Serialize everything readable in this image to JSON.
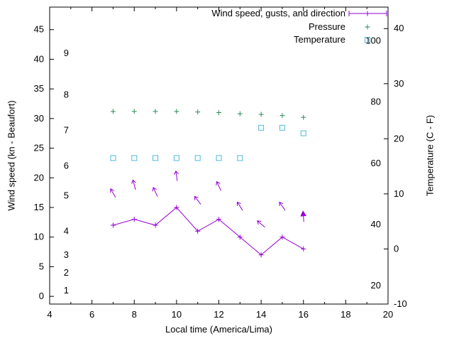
{
  "chart": {
    "background": "#ffffff",
    "text_color": "#000000",
    "axis_color": "#000000",
    "xlabel": "Local time (America/Lima)",
    "ylabel_left": "Wind speed (kn - Beaufort)",
    "ylabel_right": "Temperature (C - F)"
  },
  "legend": [
    {
      "label": "Wind speed, gusts, and direction",
      "sample": "line-plus-caps",
      "color": "#9400d3"
    },
    {
      "label": "Pressure",
      "sample": "plus",
      "color": "#2e8b57"
    },
    {
      "label": "Temperature",
      "sample": "open-square",
      "color": "#4db8d8"
    }
  ],
  "chart_data": {
    "type": "line",
    "title": "Wind speed, gusts, and direction / Pressure / Temperature",
    "xlabel": "Local time (America/Lima)",
    "ylabel_left": "Wind speed (kn - Beaufort)",
    "ylabel_right": "Temperature (C - F)",
    "grid": false,
    "legend_position": "top-right-inside",
    "x": [
      7,
      8,
      9,
      10,
      11,
      12,
      13,
      14,
      15,
      16
    ],
    "xlim": [
      4,
      20
    ],
    "x_ticks": [
      4,
      6,
      8,
      10,
      12,
      14,
      16,
      18,
      20
    ],
    "x_minor_step": 1,
    "left_axis": {
      "lim": [
        -1.3,
        48.8
      ],
      "ticks_kn": [
        0,
        5,
        10,
        15,
        20,
        25,
        30,
        35,
        40,
        45
      ],
      "beaufort_labels": [
        {
          "label": "1",
          "kn": 1
        },
        {
          "label": "2",
          "kn": 4
        },
        {
          "label": "3",
          "kn": 7
        },
        {
          "label": "4",
          "kn": 11
        },
        {
          "label": "5",
          "kn": 17
        },
        {
          "label": "6",
          "kn": 22
        },
        {
          "label": "7",
          "kn": 28
        },
        {
          "label": "8",
          "kn": 34
        },
        {
          "label": "9",
          "kn": 41
        }
      ]
    },
    "right_axis": {
      "lim_c": [
        -10,
        43.9
      ],
      "ticks_c": [
        -10,
        0,
        10,
        20,
        30,
        40
      ],
      "fahrenheit_labels": [
        20,
        40,
        60,
        80,
        100
      ]
    },
    "series": [
      {
        "name": "wind-speed",
        "legend": "Wind speed, gusts, and direction",
        "type": "line-points",
        "marker": "plus",
        "color": "#9400d3",
        "axis": "left",
        "unit": "kn",
        "values": [
          12,
          13,
          12,
          15,
          11,
          13,
          10,
          7,
          10,
          8
        ]
      },
      {
        "name": "wind-direction-arrows",
        "type": "arrows",
        "color": "#9400d3",
        "axis": "left",
        "unit": "kn",
        "y": [
          17.4,
          18.8,
          17.6,
          20.3,
          16.2,
          18.6,
          15.2,
          12.2,
          15.2,
          13.4
        ],
        "angles_deg": [
          -30,
          -15,
          -25,
          -8,
          -38,
          -25,
          -33,
          -50,
          -35,
          -4
        ],
        "filled_head": [
          false,
          false,
          false,
          false,
          false,
          false,
          false,
          false,
          false,
          true
        ]
      },
      {
        "name": "pressure",
        "legend": "Pressure",
        "type": "points",
        "marker": "plus",
        "color": "#2e8b57",
        "axis": "left-equivalent",
        "note": "pressure numeric axis not shown; values are plotted positions in left-axis units",
        "values": [
          31.2,
          31.2,
          31.2,
          31.2,
          31.1,
          31.0,
          30.8,
          30.7,
          30.5,
          30.2
        ]
      },
      {
        "name": "temperature",
        "legend": "Temperature",
        "type": "points",
        "marker": "open-square",
        "color": "#4db8d8",
        "axis": "right",
        "unit": "C",
        "values": [
          16.5,
          16.5,
          16.5,
          16.5,
          16.5,
          16.5,
          16.5,
          22,
          22,
          21
        ]
      }
    ]
  }
}
